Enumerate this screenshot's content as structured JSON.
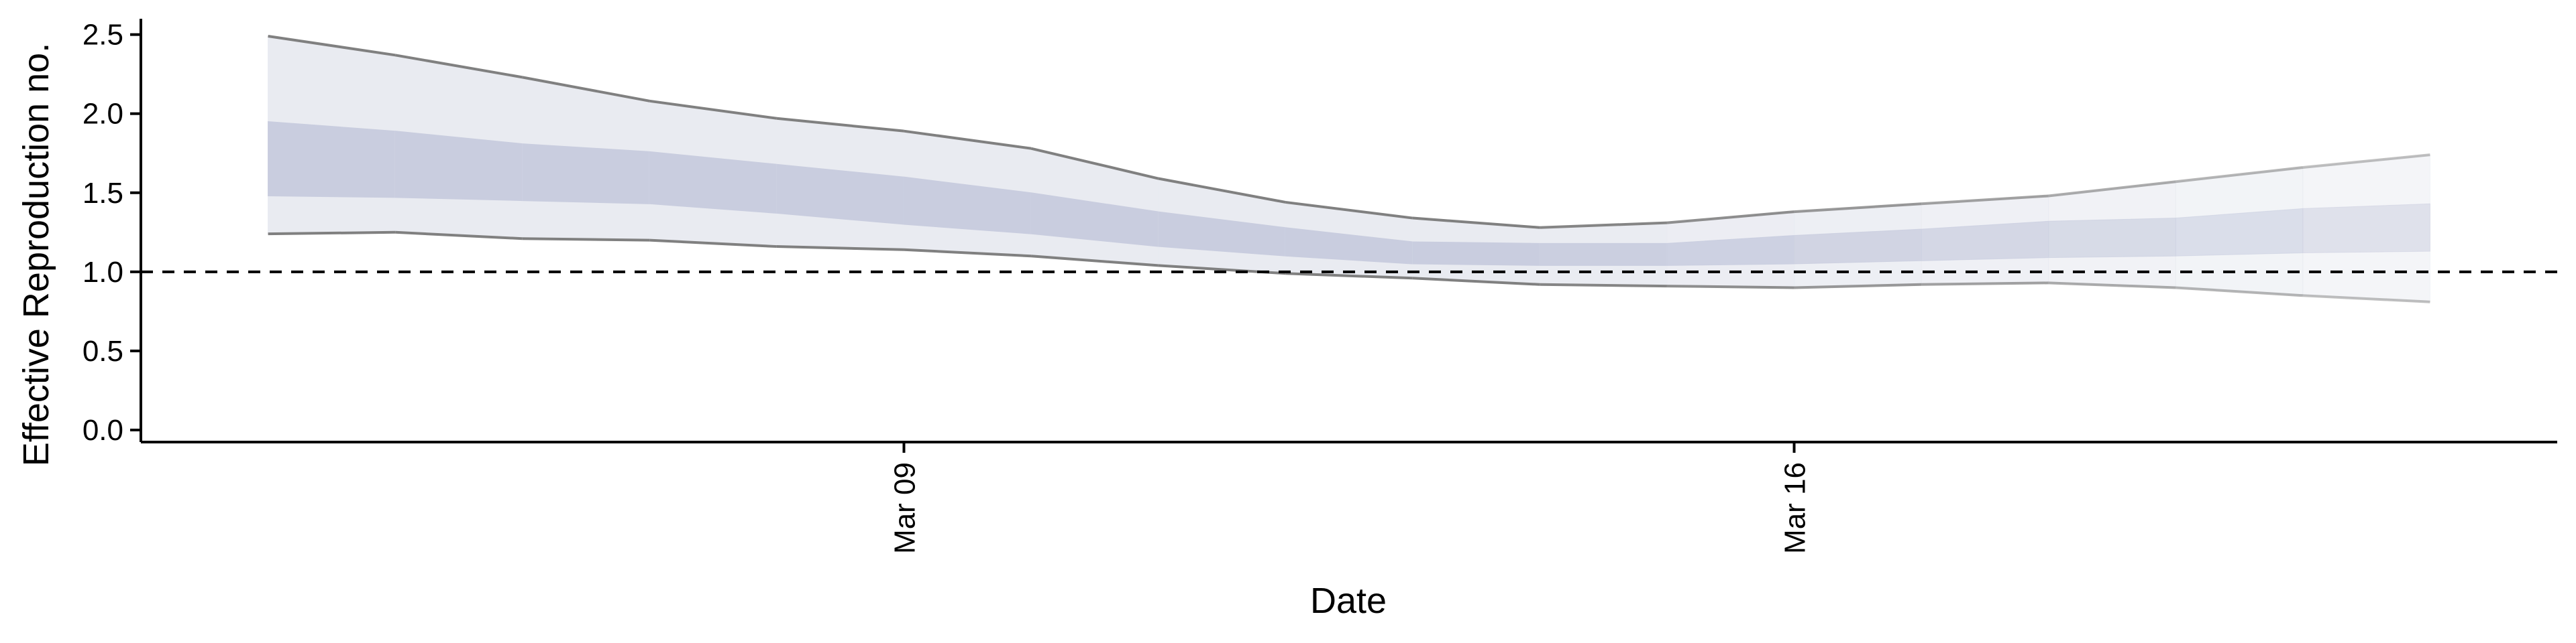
{
  "chart_data": {
    "type": "area",
    "title": "",
    "xlabel": "Date",
    "ylabel": "Effective Reproduction no.",
    "x_ticks": [
      {
        "date": "2020-03-09",
        "label": "Mar 09"
      },
      {
        "date": "2020-03-16",
        "label": "Mar 16"
      }
    ],
    "y_ticks": [
      "0.0",
      "0.5",
      "1.0",
      "1.5",
      "2.0",
      "2.5"
    ],
    "xlim": [
      "2020-03-03",
      "2020-03-22"
    ],
    "ylim": [
      0,
      2.6
    ],
    "reference_line": 1.0,
    "grid": false,
    "colors": {
      "outer_band": "#e9ebf1",
      "inner_band": "#c9cddf",
      "outer_edge": "#808080",
      "reference": "#000000"
    },
    "series": [
      {
        "x": [
          "2020-03-04",
          "2020-03-05",
          "2020-03-06",
          "2020-03-07",
          "2020-03-08",
          "2020-03-09",
          "2020-03-10",
          "2020-03-11",
          "2020-03-12",
          "2020-03-13",
          "2020-03-14",
          "2020-03-15",
          "2020-03-16",
          "2020-03-17",
          "2020-03-18",
          "2020-03-19",
          "2020-03-20",
          "2020-03-21"
        ],
        "upper_90": [
          2.49,
          2.37,
          2.23,
          2.08,
          1.97,
          1.89,
          1.78,
          1.59,
          1.44,
          1.34,
          1.28,
          1.31,
          1.38,
          1.43,
          1.48,
          1.57,
          1.66,
          1.74
        ],
        "upper_50": [
          1.95,
          1.89,
          1.81,
          1.76,
          1.68,
          1.6,
          1.5,
          1.38,
          1.28,
          1.19,
          1.18,
          1.18,
          1.23,
          1.27,
          1.32,
          1.34,
          1.4,
          1.43
        ],
        "lower_50": [
          1.48,
          1.47,
          1.45,
          1.43,
          1.37,
          1.3,
          1.24,
          1.16,
          1.1,
          1.05,
          1.04,
          1.04,
          1.05,
          1.07,
          1.09,
          1.1,
          1.12,
          1.13
        ],
        "lower_90": [
          1.24,
          1.25,
          1.21,
          1.2,
          1.16,
          1.14,
          1.1,
          1.04,
          0.99,
          0.96,
          0.92,
          0.91,
          0.9,
          0.92,
          0.93,
          0.9,
          0.85,
          0.81
        ]
      }
    ],
    "forecast_fade_from": "2020-03-14"
  }
}
